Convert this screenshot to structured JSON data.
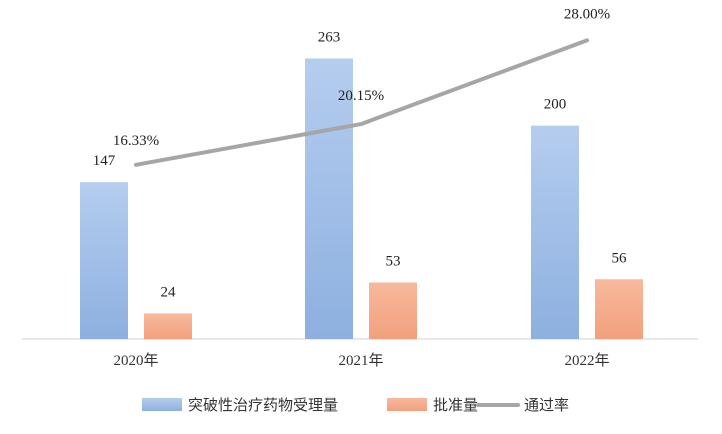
{
  "chart_data": {
    "type": "bar",
    "categories": [
      "2020年",
      "2021年",
      "2022年"
    ],
    "series": [
      {
        "name": "突破性治疗药物受理量",
        "kind": "bar",
        "values": [
          147,
          263,
          200
        ],
        "labels": [
          "147",
          "263",
          "200"
        ],
        "color": "#8fb3e3"
      },
      {
        "name": "批准量",
        "kind": "bar",
        "values": [
          24,
          53,
          56
        ],
        "labels": [
          "24",
          "53",
          "56"
        ],
        "color": "#f4a985"
      },
      {
        "name": "通过率",
        "kind": "line",
        "axis": "secondary",
        "values": [
          16.33,
          20.15,
          28.0
        ],
        "labels": [
          "16.33%",
          "20.15%",
          "28.00%"
        ],
        "color": "#a6a6a6"
      }
    ],
    "ylim": [
      0,
      300
    ],
    "y2lim": [
      0,
      30
    ],
    "grid": false,
    "legend_position": "bottom"
  }
}
